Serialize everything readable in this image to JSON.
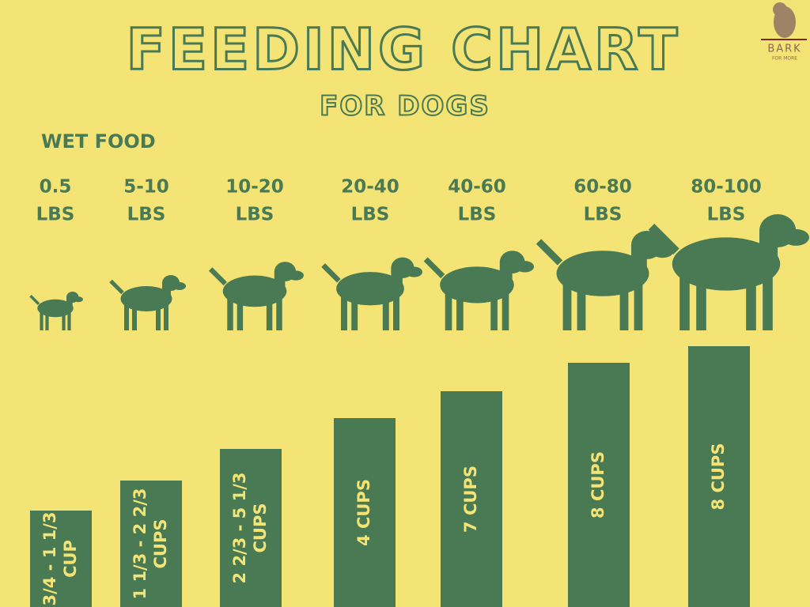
{
  "header": {
    "title": "FEEDING CHART",
    "subtitle": "FOR DOGS"
  },
  "logo": {
    "name": "BARK",
    "tagline": "FOR MORE"
  },
  "section": "WET FOOD",
  "columns": [
    {
      "weight": [
        "0.5",
        "LBS"
      ],
      "amount": [
        "3/4 - 1 1/3",
        "CUP"
      ]
    },
    {
      "weight": [
        "5-10",
        "LBS"
      ],
      "amount": [
        "1 1/3 - 2 2/3",
        "CUPS"
      ]
    },
    {
      "weight": [
        "10-20",
        "LBS"
      ],
      "amount": [
        "2 2/3 - 5 1/3",
        "CUPS"
      ]
    },
    {
      "weight": [
        "20-40",
        "LBS"
      ],
      "amount": [
        "4 CUPS"
      ]
    },
    {
      "weight": [
        "40-60",
        "LBS"
      ],
      "amount": [
        "7 CUPS"
      ]
    },
    {
      "weight": [
        "60-80",
        "LBS"
      ],
      "amount": [
        "8 CUPS"
      ]
    },
    {
      "weight": [
        "80-100",
        "LBS"
      ],
      "amount": [
        "8 CUPS"
      ]
    }
  ]
}
